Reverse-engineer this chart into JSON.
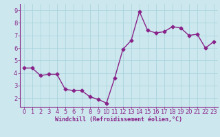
{
  "x": [
    0,
    1,
    2,
    3,
    4,
    5,
    6,
    7,
    8,
    9,
    10,
    11,
    12,
    13,
    14,
    15,
    16,
    17,
    18,
    19,
    20,
    21,
    22,
    23
  ],
  "y": [
    4.4,
    4.4,
    3.8,
    3.9,
    3.9,
    2.7,
    2.6,
    2.6,
    2.1,
    1.9,
    1.6,
    3.6,
    5.9,
    6.6,
    8.9,
    7.4,
    7.2,
    7.3,
    7.7,
    7.6,
    7.0,
    7.1,
    6.0,
    6.5
  ],
  "line_color": "#882288",
  "marker": "D",
  "marker_size": 2.5,
  "bg_color": "#cce8ee",
  "grid_color": "#aad4dc",
  "xlabel": "Windchill (Refroidissement éolien,°C)",
  "xlabel_color": "#882288",
  "tick_color": "#882288",
  "spine_color": "#882288",
  "xlim": [
    -0.5,
    23.5
  ],
  "ylim": [
    1.3,
    9.5
  ],
  "yticks": [
    2,
    3,
    4,
    5,
    6,
    7,
    8,
    9
  ],
  "xticks": [
    0,
    1,
    2,
    3,
    4,
    5,
    6,
    7,
    8,
    9,
    10,
    11,
    12,
    13,
    14,
    15,
    16,
    17,
    18,
    19,
    20,
    21,
    22,
    23
  ],
  "xlabel_fontsize": 6.0,
  "tick_fontsize": 6.0,
  "linewidth": 1.0
}
